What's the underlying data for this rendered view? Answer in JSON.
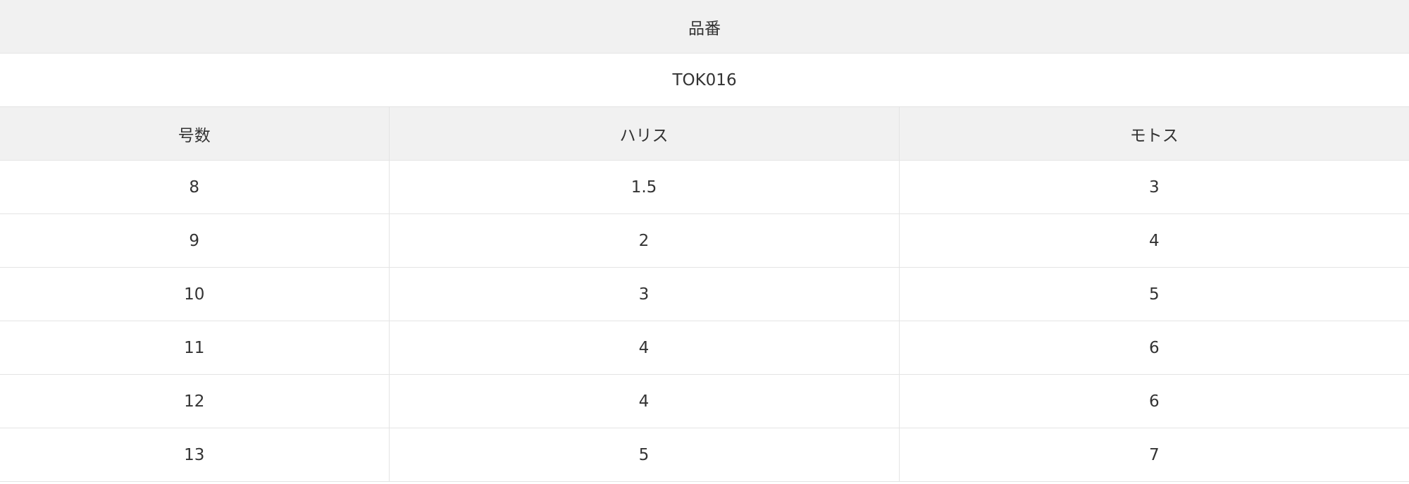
{
  "product_header": "品番",
  "product_code": "TOK016",
  "columns": [
    "号数",
    "ハリス",
    "モトス"
  ],
  "rows": [
    [
      "8",
      "1.5",
      "3"
    ],
    [
      "9",
      "2",
      "4"
    ],
    [
      "10",
      "3",
      "5"
    ],
    [
      "11",
      "4",
      "6"
    ],
    [
      "12",
      "4",
      "6"
    ],
    [
      "13",
      "5",
      "7"
    ]
  ]
}
